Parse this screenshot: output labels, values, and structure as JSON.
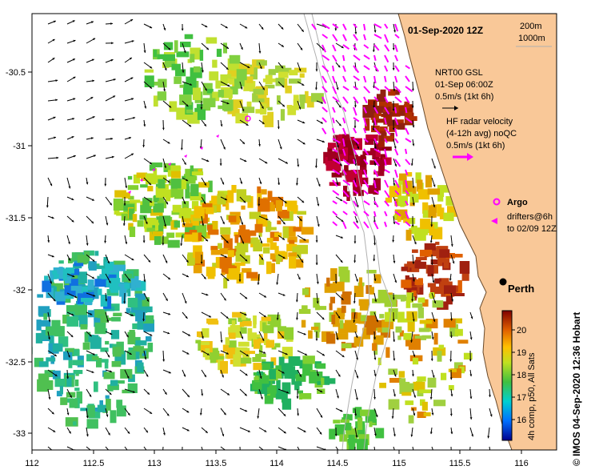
{
  "map": {
    "title": "01-Sep-2020 12Z",
    "scale": {
      "depth1": "200m",
      "depth2": "1000m"
    },
    "x_ticks": [
      "112",
      "112.5",
      "113",
      "113.5",
      "114",
      "114.5",
      "115",
      "115.5",
      "116"
    ],
    "y_ticks": [
      "-30.5",
      "-31",
      "-31.5",
      "-32",
      "-32.5",
      "-33"
    ],
    "legend": {
      "model_name": "NRT00 GSL",
      "model_time": "01-Sep 06:00Z",
      "model_scale": "0.5m/s (1kt 6h)",
      "radar_title": "HF radar velocity",
      "radar_sub": "(4-12h avg) noQC",
      "radar_scale": "0.5m/s (1kt 6h)",
      "argo": "Argo",
      "drifters1": "drifters@6h",
      "drifters2": "to 02/09 12Z"
    },
    "city": "Perth",
    "colorbar": {
      "ticks": [
        "20",
        "19",
        "18",
        "17",
        "16"
      ],
      "label": "4h comp, p50, All Sats"
    },
    "credit": "© IMOS 04-Sep-2020 12:36 Hobart",
    "colors": {
      "land": "#f9c898",
      "radar": "#ff00ff",
      "arrow": "#000000"
    }
  }
}
